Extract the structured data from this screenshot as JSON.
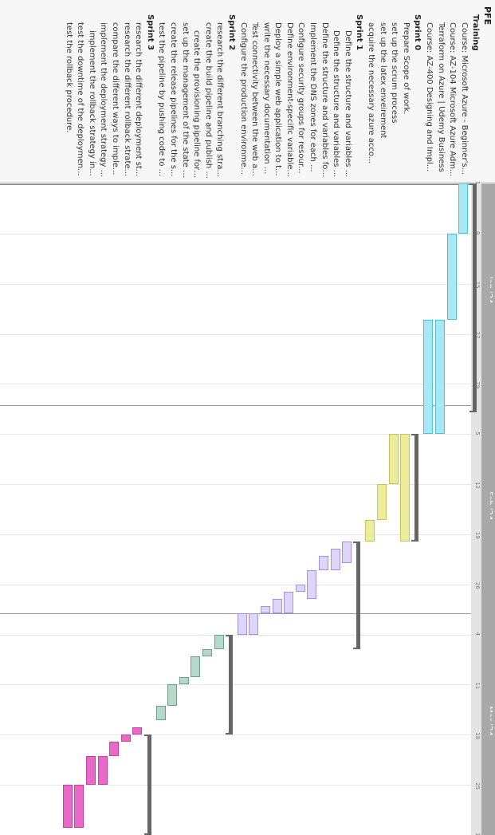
{
  "root_label": "PFE",
  "timeline": {
    "start": "2024-01-01",
    "end": "2024-04-01",
    "months": [
      {
        "label": "Jan '24",
        "date": "2024-01-16"
      },
      {
        "label": "Feb '24",
        "date": "2024-02-15"
      },
      {
        "label": "Mar '24",
        "date": "2024-03-16"
      }
    ],
    "month_starts": [
      "2024-01-01",
      "2024-02-01",
      "2024-03-01",
      "2024-04-01"
    ],
    "tick_dates": [
      "2024-01-01",
      "2024-01-08",
      "2024-01-15",
      "2024-01-22",
      "2024-01-29",
      "2024-02-05",
      "2024-02-12",
      "2024-02-19",
      "2024-02-26",
      "2024-03-04",
      "2024-03-11",
      "2024-03-18",
      "2024-03-25",
      "2024-04-01"
    ],
    "tick_labels": [
      "1",
      "8",
      "15",
      "22",
      "29",
      "5",
      "12",
      "19",
      "26",
      "4",
      "11",
      "18",
      "25",
      "1"
    ]
  },
  "colors": {
    "training": {
      "fill": "#a8e8f4",
      "border": "#4cc0d8"
    },
    "sprint0": {
      "fill": "#ecec9c",
      "border": "#c4c45a"
    },
    "sprint1": {
      "fill": "#ddd6fb",
      "border": "#a491e6"
    },
    "sprint2": {
      "fill": "#b7d9cc",
      "border": "#6a9e8a"
    },
    "sprint3": {
      "fill": "#e86ac7",
      "border": "#c8409e"
    },
    "group_bar": "#666666"
  },
  "rows": [
    {
      "kind": "root",
      "label": "PFE"
    },
    {
      "kind": "group",
      "label": "Training",
      "start": "2024-01-01",
      "end": "2024-02-02"
    },
    {
      "kind": "task",
      "label": "Course: Microsoft Azure - Beginner's...",
      "start": "2024-01-01",
      "end": "2024-01-08",
      "color": "training"
    },
    {
      "kind": "task",
      "label": "Course: AZ-104 Microsoft Azure Adm...",
      "start": "2024-01-08",
      "end": "2024-01-20",
      "color": "training"
    },
    {
      "kind": "task",
      "label": "Terraform on Azure | Udemy Business",
      "start": "2024-01-20",
      "end": "2024-02-05",
      "color": "training"
    },
    {
      "kind": "task",
      "label": "Course: AZ-400 Designing and Impl...",
      "start": "2024-01-20",
      "end": "2024-02-05",
      "color": "training"
    },
    {
      "kind": "group",
      "label": "Sprint 0",
      "start": "2024-02-05",
      "end": "2024-02-20"
    },
    {
      "kind": "task",
      "label": "Prepare Scope of work.",
      "start": "2024-02-05",
      "end": "2024-02-20",
      "color": "sprint0"
    },
    {
      "kind": "task",
      "label": "set up the scrum process",
      "start": "2024-02-05",
      "end": "2024-02-12",
      "color": "sprint0"
    },
    {
      "kind": "task",
      "label": "set up the latex enveirement",
      "start": "2024-02-12",
      "end": "2024-02-17",
      "color": "sprint0"
    },
    {
      "kind": "task",
      "label": "acquire the necessary azure acco...",
      "start": "2024-02-17",
      "end": "2024-02-20",
      "color": "sprint0"
    },
    {
      "kind": "group",
      "label": "Sprint 1",
      "start": "2024-02-20",
      "end": "2024-03-06"
    },
    {
      "kind": "sub",
      "label": "Define the structure and variables ...",
      "start": "2024-02-20",
      "end": "2024-02-23",
      "color": "sprint1"
    },
    {
      "kind": "sub",
      "label": "Define the structure and variables ...",
      "start": "2024-02-21",
      "end": "2024-02-24",
      "color": "sprint1"
    },
    {
      "kind": "task",
      "label": "Define the structure and variables for...",
      "start": "2024-02-22",
      "end": "2024-02-24",
      "color": "sprint1"
    },
    {
      "kind": "task",
      "label": "Implement the DNS zones for each ...",
      "start": "2024-02-24",
      "end": "2024-02-28",
      "color": "sprint1"
    },
    {
      "kind": "task",
      "label": "Configure security groups for resour...",
      "start": "2024-02-26",
      "end": "2024-02-27",
      "color": "sprint1"
    },
    {
      "kind": "task",
      "label": "Define environment-specific variable...",
      "start": "2024-02-27",
      "end": "2024-03-01",
      "color": "sprint1"
    },
    {
      "kind": "task",
      "label": "Deploy a simple web application to t...",
      "start": "2024-02-28",
      "end": "2024-03-01",
      "color": "sprint1"
    },
    {
      "kind": "task",
      "label": "write the necessary documentation ...",
      "start": "2024-02-29",
      "end": "2024-03-01",
      "color": "sprint1"
    },
    {
      "kind": "task",
      "label": "Test connectivity between the web a...",
      "start": "2024-03-01",
      "end": "2024-03-04",
      "color": "sprint1"
    },
    {
      "kind": "task",
      "label": "Configure the production environme...",
      "start": "2024-03-01",
      "end": "2024-03-04",
      "color": "sprint1"
    },
    {
      "kind": "group",
      "label": "Sprint 2",
      "start": "2024-03-04",
      "end": "2024-03-18"
    },
    {
      "kind": "task",
      "label": "research the different branching stra...",
      "start": "2024-03-04",
      "end": "2024-03-06",
      "color": "sprint2"
    },
    {
      "kind": "task",
      "label": "create the build pipeline and publish ...",
      "start": "2024-03-06",
      "end": "2024-03-07",
      "color": "sprint2"
    },
    {
      "kind": "sub",
      "label": "create the provisioning pipeline for ...",
      "start": "2024-03-07",
      "end": "2024-03-10",
      "color": "sprint2"
    },
    {
      "kind": "task",
      "label": "set up the management of the state f...",
      "start": "2024-03-10",
      "end": "2024-03-11",
      "color": "sprint2"
    },
    {
      "kind": "task",
      "label": "create the release pipelines for the s...",
      "start": "2024-03-11",
      "end": "2024-03-14",
      "color": "sprint2"
    },
    {
      "kind": "task",
      "label": "test the pipeline by pushing code to ...",
      "start": "2024-03-14",
      "end": "2024-03-16",
      "color": "sprint2"
    },
    {
      "kind": "group",
      "label": "Sprint 3",
      "start": "2024-03-18",
      "end": "2024-04-01"
    },
    {
      "kind": "task",
      "label": "research the different deployment st...",
      "start": "2024-03-17",
      "end": "2024-03-18",
      "color": "sprint3"
    },
    {
      "kind": "task",
      "label": "research the different rollback strate...",
      "start": "2024-03-18",
      "end": "2024-03-19",
      "color": "sprint3"
    },
    {
      "kind": "task",
      "label": "compare the different ways to imple...",
      "start": "2024-03-19",
      "end": "2024-03-21",
      "color": "sprint3"
    },
    {
      "kind": "task",
      "label": "implement the deployment strategy ...",
      "start": "2024-03-21",
      "end": "2024-03-25",
      "color": "sprint3"
    },
    {
      "kind": "sub",
      "label": "implement the rollback strategy in...",
      "start": "2024-03-21",
      "end": "2024-03-25",
      "color": "sprint3"
    },
    {
      "kind": "task",
      "label": "test the downtime of the deploymen...",
      "start": "2024-03-25",
      "end": "2024-03-31",
      "color": "sprint3"
    },
    {
      "kind": "task",
      "label": "test the rollback procedure.",
      "start": "2024-03-25",
      "end": "2024-03-31",
      "color": "sprint3"
    }
  ]
}
